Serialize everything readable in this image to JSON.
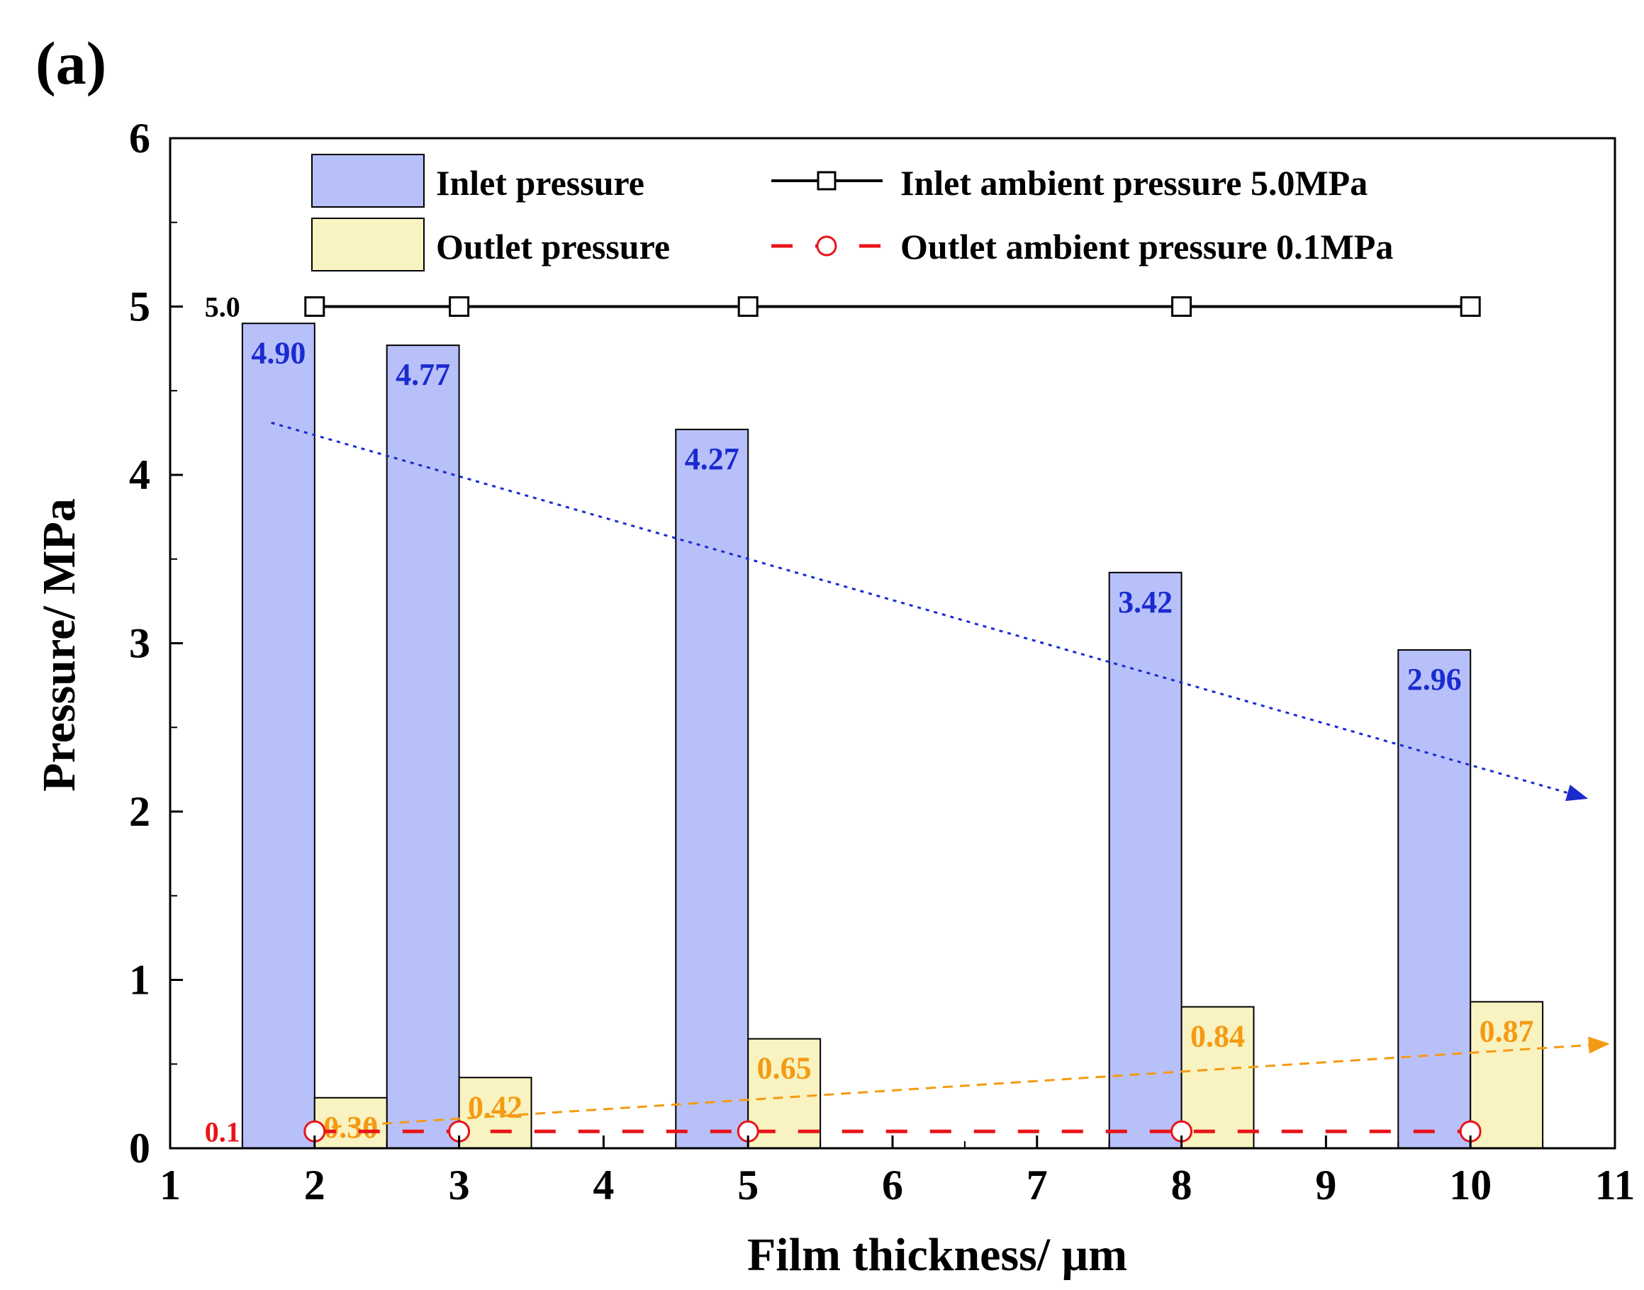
{
  "panel_label": "(a)",
  "chart_data": {
    "type": "bar",
    "title": "",
    "xlabel": "Film thickness/ μm",
    "ylabel": "Pressure/ MPa",
    "xlim": [
      1,
      11
    ],
    "ylim": [
      0,
      6
    ],
    "x_ticks": [
      1,
      2,
      3,
      4,
      5,
      6,
      7,
      8,
      9,
      10,
      11
    ],
    "y_ticks": [
      0,
      1,
      2,
      3,
      4,
      5,
      6
    ],
    "x": [
      2,
      3,
      5,
      8,
      10
    ],
    "bar_width": 0.5,
    "series": [
      {
        "name": "Inlet pressure",
        "kind": "bar",
        "offset": -0.25,
        "values": [
          4.9,
          4.77,
          4.27,
          3.42,
          2.96
        ],
        "labels": [
          "4.90",
          "4.77",
          "4.27",
          "3.42",
          "2.96"
        ],
        "color": "#b8c0fa",
        "label_color": "#1a2bd0"
      },
      {
        "name": "Outlet pressure",
        "kind": "bar",
        "offset": 0.25,
        "values": [
          0.3,
          0.42,
          0.65,
          0.84,
          0.87
        ],
        "labels": [
          "0.30",
          "0.42",
          "0.65",
          "0.84",
          "0.87"
        ],
        "color": "#f8f3c0",
        "label_color": "#f59a12"
      },
      {
        "name": "Inlet ambient pressure 5.0MPa",
        "kind": "line",
        "marker": "square",
        "values": [
          5.0,
          5.0,
          5.0,
          5.0,
          5.0
        ],
        "color": "#000000"
      },
      {
        "name": "Outlet ambient pressure 0.1MPa",
        "kind": "line",
        "marker": "circle",
        "dashed": true,
        "values": [
          0.1,
          0.1,
          0.1,
          0.1,
          0.1
        ],
        "color": "#e8141a"
      }
    ],
    "reference_labels": [
      {
        "text": "5.0",
        "value": 5.0,
        "color": "#000000"
      },
      {
        "text": "0.1",
        "value": 0.1,
        "color": "#e8141a"
      }
    ],
    "trend_arrows": [
      {
        "name": "inlet-trend",
        "from": [
          1.7,
          4.31
        ],
        "to": [
          10.8,
          2.08
        ],
        "color": "#1a2bd0"
      },
      {
        "name": "outlet-trend",
        "from": [
          2.0,
          0.12
        ],
        "to": [
          10.95,
          0.62
        ],
        "color": "#f59a12"
      }
    ],
    "legend": "top"
  }
}
